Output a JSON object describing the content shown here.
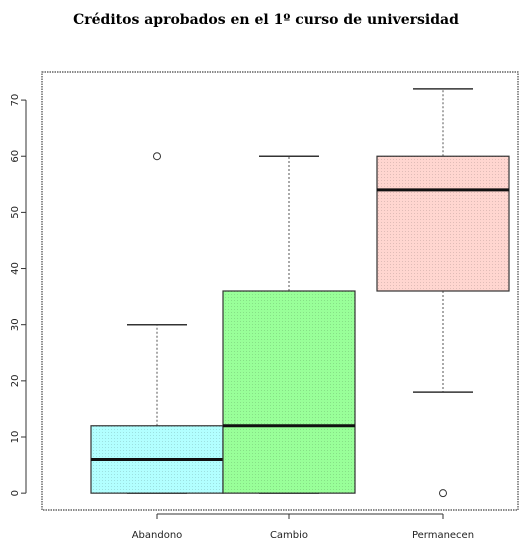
{
  "chart_data": {
    "type": "boxplot",
    "title": "Créditos aprobados en el 1º curso de universidad",
    "xlabel": "",
    "ylabel": "",
    "ylim": [
      -3,
      75
    ],
    "yticks": [
      0,
      10,
      20,
      30,
      40,
      50,
      60,
      70
    ],
    "categories": [
      "Abandono",
      "Cambio",
      "Permanecen"
    ],
    "boxes": [
      {
        "name": "Abandono",
        "whisker_low": 0,
        "q1": 0,
        "median": 6,
        "q3": 12,
        "whisker_high": 30,
        "outliers": [
          60
        ],
        "color": "#b2ffff"
      },
      {
        "name": "Cambio",
        "whisker_low": 0,
        "q1": 0,
        "median": 12,
        "q3": 36,
        "whisker_high": 60,
        "outliers": [],
        "color": "#99ff99"
      },
      {
        "name": "Permanecen",
        "whisker_low": 18,
        "q1": 36,
        "median": 54,
        "q3": 60,
        "whisker_high": 72,
        "outliers": [
          0
        ],
        "color": "#ffd6d0"
      }
    ],
    "grid": false
  }
}
